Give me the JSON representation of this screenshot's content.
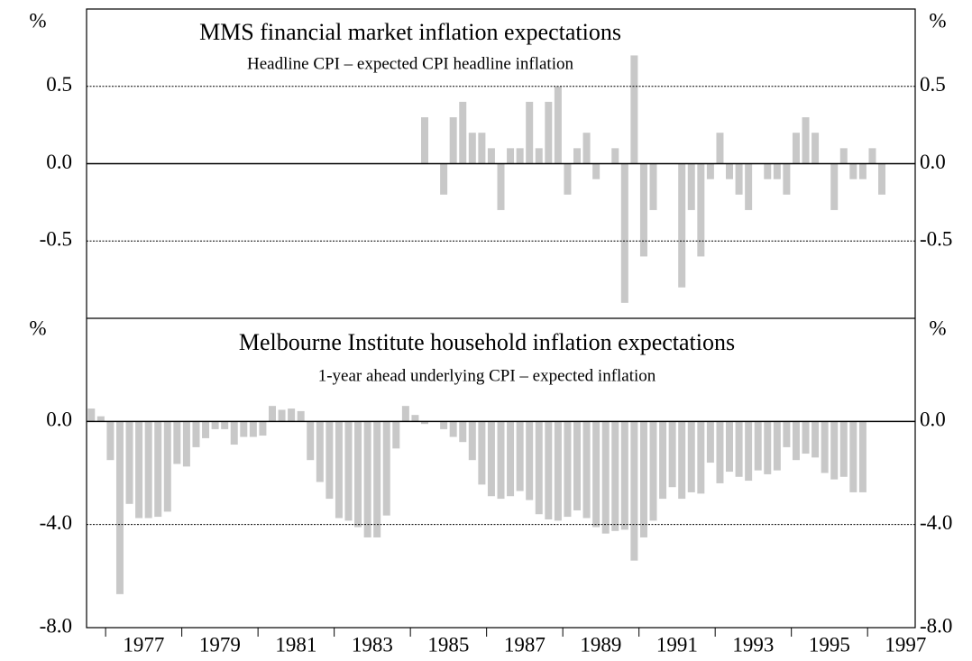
{
  "chart_data": [
    {
      "type": "bar",
      "title": "MMS financial market inflation expectations",
      "subtitle": "Headline CPI – expected CPI headline inflation",
      "y_label": "%",
      "color": "#c8c8c8",
      "values": [
        null,
        null,
        null,
        null,
        null,
        null,
        null,
        null,
        null,
        null,
        null,
        null,
        null,
        null,
        null,
        null,
        null,
        null,
        null,
        null,
        null,
        null,
        null,
        null,
        null,
        null,
        null,
        null,
        null,
        null,
        null,
        null,
        null,
        null,
        null,
        0.3,
        0,
        -0.2,
        0.3,
        0.4,
        0.2,
        0.2,
        0.1,
        -0.3,
        0.1,
        0.1,
        0.4,
        0.1,
        0.4,
        0.5,
        -0.2,
        0.1,
        0.2,
        -0.1,
        0,
        0.1,
        -0.9,
        0.7,
        -0.6,
        -0.3,
        0,
        0,
        -0.8,
        -0.3,
        -0.6,
        -0.1,
        0.2,
        -0.1,
        -0.2,
        -0.3,
        0,
        -0.1,
        -0.1,
        -0.2,
        0.2,
        0.3,
        0.2,
        0,
        -0.3,
        0.1,
        -0.1,
        -0.1,
        0.1,
        -0.2,
        null,
        null,
        null
      ],
      "ylim": [
        -1,
        1
      ],
      "yticks": [
        -0.5,
        {
          "value": 0,
          "label": "0.0"
        },
        0.5
      ],
      "grid": true
    },
    {
      "type": "bar",
      "title": "Melbourne Institute household inflation expectations",
      "subtitle": "1-year ahead underlying CPI – expected inflation",
      "y_label": "%",
      "color": "#c8c8c8",
      "categories": [
        null,
        null,
        null,
        null,
        null,
        "1977",
        null,
        null,
        null,
        null,
        null,
        null,
        null,
        "1979",
        null,
        null,
        null,
        null,
        null,
        null,
        null,
        "1981",
        null,
        null,
        null,
        null,
        null,
        null,
        null,
        "1983",
        null,
        null,
        null,
        null,
        null,
        null,
        null,
        "1985",
        null,
        null,
        null,
        null,
        null,
        null,
        null,
        "1987",
        null,
        null,
        null,
        null,
        null,
        null,
        null,
        "1989",
        null,
        null,
        null,
        null,
        null,
        null,
        null,
        "1991",
        null,
        null,
        null,
        null,
        null,
        null,
        null,
        "1993",
        null,
        null,
        null,
        null,
        null,
        null,
        null,
        "1995",
        null,
        null,
        null,
        null,
        null,
        null,
        null,
        "1997",
        null
      ],
      "values": [
        0.5,
        0.2,
        -1.5,
        -6.7,
        -3.2,
        -3.75,
        -3.75,
        -3.7,
        -3.5,
        -1.65,
        -1.75,
        -1.0,
        -0.65,
        -0.3,
        -0.3,
        -0.9,
        -0.6,
        -0.6,
        -0.55,
        0.6,
        0.45,
        0.5,
        0.4,
        -1.5,
        -2.35,
        -3.0,
        -3.75,
        -3.85,
        -4.1,
        -4.5,
        -4.5,
        -3.65,
        -1.05,
        0.6,
        0.25,
        -0.1,
        0,
        -0.3,
        -0.6,
        -0.8,
        -1.5,
        -2.45,
        -2.9,
        -3.0,
        -2.9,
        -2.7,
        -3.05,
        -3.6,
        -3.8,
        -3.85,
        -3.7,
        -3.45,
        -3.75,
        -4.1,
        -4.35,
        -4.25,
        -4.2,
        -5.4,
        -4.5,
        -3.85,
        -3.0,
        -2.55,
        -3.0,
        -2.75,
        -2.8,
        -1.6,
        -2.4,
        -1.95,
        -2.15,
        -2.3,
        -1.9,
        -2.05,
        -1.9,
        -1.0,
        -1.5,
        -1.25,
        -1.4,
        -2.0,
        -2.25,
        -2.15,
        -2.75,
        -2.75,
        null,
        null,
        null,
        null,
        null
      ],
      "ylim": [
        -8,
        4
      ],
      "yticks": [
        {
          "value": -8,
          "label": "-8.0"
        },
        {
          "value": -4,
          "label": "-4.0"
        },
        {
          "value": 0,
          "label": "0.0"
        }
      ],
      "grid": true
    }
  ]
}
